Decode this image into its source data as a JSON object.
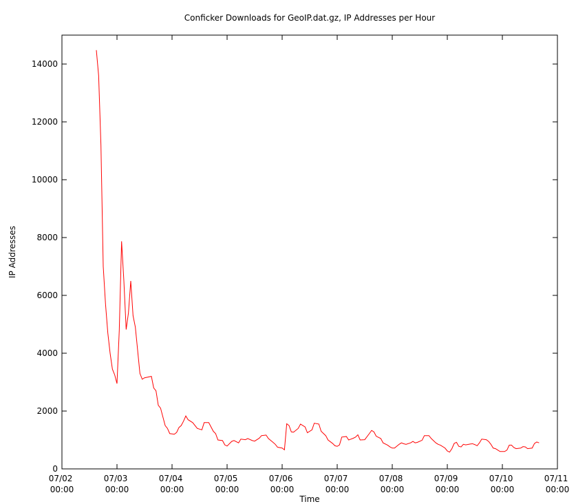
{
  "chart_data": {
    "type": "line",
    "title": "Conficker Downloads for GeoIP.dat.gz, IP Addresses per Hour",
    "x_label": "Time",
    "y_label": "IP Addresses",
    "x": [
      "07/02 15:00",
      "07/02 16:00",
      "07/02 17:00",
      "07/02 18:00",
      "07/02 19:00",
      "07/02 20:00",
      "07/02 21:00",
      "07/02 22:00",
      "07/02 23:00",
      "07/03 00:00",
      "07/03 01:00",
      "07/03 02:00",
      "07/03 03:00",
      "07/03 04:00",
      "07/03 05:00",
      "07/03 06:00",
      "07/03 07:00",
      "07/03 08:00",
      "07/03 09:00",
      "07/03 10:00",
      "07/03 11:00",
      "07/03 12:00",
      "07/03 15:00",
      "07/03 16:00",
      "07/03 17:00",
      "07/03 18:00",
      "07/03 19:00",
      "07/03 21:00",
      "07/03 22:00",
      "07/03 23:00",
      "07/04 01:00",
      "07/04 02:00",
      "07/04 03:00",
      "07/04 04:00",
      "07/04 05:00",
      "07/04 06:00",
      "07/04 07:00",
      "07/04 09:00",
      "07/04 11:00",
      "07/04 13:00",
      "07/04 14:00",
      "07/04 16:00",
      "07/04 18:00",
      "07/04 19:00",
      "07/04 20:00",
      "07/04 22:00",
      "07/04 23:00",
      "07/05 00:00",
      "07/05 02:00",
      "07/05 03:00",
      "07/05 05:00",
      "07/05 06:00",
      "07/05 08:00",
      "07/05 09:00",
      "07/05 11:00",
      "07/05 12:00",
      "07/05 14:00",
      "07/05 15:00",
      "07/05 17:00",
      "07/05 18:00",
      "07/05 20:00",
      "07/05 21:00",
      "07/05 22:00",
      "07/06 00:00",
      "07/06 01:00",
      "07/06 02:00",
      "07/06 03:00",
      "07/06 04:00",
      "07/06 05:00",
      "07/06 07:00",
      "07/06 08:00",
      "07/06 10:00",
      "07/06 11:00",
      "07/06 13:00",
      "07/06 14:00",
      "07/06 16:00",
      "07/06 17:00",
      "07/06 19:00",
      "07/06 20:00",
      "07/06 22:00",
      "07/06 23:00",
      "07/07 00:00",
      "07/07 01:00",
      "07/07 02:00",
      "07/07 04:00",
      "07/07 05:00",
      "07/07 07:00",
      "07/07 08:00",
      "07/07 09:00",
      "07/07 10:00",
      "07/07 12:00",
      "07/07 14:00",
      "07/07 15:00",
      "07/07 16:00",
      "07/07 17:00",
      "07/07 19:00",
      "07/07 20:00",
      "07/07 22:00",
      "07/07 23:00",
      "07/08 00:00",
      "07/08 01:00",
      "07/08 03:00",
      "07/08 04:00",
      "07/08 05:00",
      "07/08 06:00",
      "07/08 08:00",
      "07/08 09:00",
      "07/08 10:00",
      "07/08 11:00",
      "07/08 13:00",
      "07/08 14:00",
      "07/08 16:00",
      "07/08 17:00",
      "07/08 19:00",
      "07/08 20:00",
      "07/08 21:00",
      "07/08 23:00",
      "07/09 00:00",
      "07/09 01:00",
      "07/09 02:00",
      "07/09 03:00",
      "07/09 04:00",
      "07/09 05:00",
      "07/09 06:00",
      "07/09 07:00",
      "07/09 08:00",
      "07/09 10:00",
      "07/09 11:00",
      "07/09 12:00",
      "07/09 13:00",
      "07/09 14:00",
      "07/09 15:00",
      "07/09 17:00",
      "07/09 18:00",
      "07/09 19:00",
      "07/09 20:00",
      "07/09 21:00",
      "07/09 22:00",
      "07/09 23:00",
      "07/10 01:00",
      "07/10 02:00",
      "07/10 03:00",
      "07/10 04:00",
      "07/10 05:00",
      "07/10 06:00",
      "07/10 08:00",
      "07/10 09:00",
      "07/10 10:00",
      "07/10 11:00",
      "07/10 13:00",
      "07/10 14:00",
      "07/10 15:00",
      "07/10 16:00"
    ],
    "series": [
      {
        "color": "#ff0000",
        "values": [
          14480,
          13600,
          11200,
          7000,
          5700,
          4700,
          4000,
          3450,
          3250,
          2950,
          4800,
          7870,
          6500,
          4820,
          5400,
          6500,
          5300,
          4900,
          4100,
          3300,
          3100,
          3150,
          3200,
          2800,
          2700,
          2200,
          2100,
          1500,
          1400,
          1220,
          1200,
          1260,
          1430,
          1500,
          1650,
          1830,
          1700,
          1600,
          1400,
          1350,
          1600,
          1600,
          1300,
          1220,
          1000,
          980,
          830,
          790,
          950,
          980,
          900,
          1030,
          1010,
          1050,
          980,
          960,
          1060,
          1150,
          1170,
          1050,
          920,
          850,
          750,
          720,
          660,
          1560,
          1500,
          1280,
          1270,
          1400,
          1550,
          1450,
          1250,
          1350,
          1580,
          1550,
          1300,
          1150,
          1000,
          880,
          800,
          780,
          830,
          1100,
          1120,
          1000,
          1060,
          1100,
          1180,
          1000,
          1010,
          1220,
          1330,
          1280,
          1130,
          1050,
          900,
          820,
          760,
          720,
          720,
          850,
          900,
          870,
          850,
          900,
          950,
          900,
          920,
          990,
          1150,
          1150,
          1050,
          900,
          850,
          820,
          720,
          620,
          580,
          700,
          880,
          920,
          780,
          760,
          850,
          830,
          860,
          870,
          840,
          800,
          900,
          1030,
          1010,
          950,
          850,
          720,
          700,
          650,
          600,
          600,
          650,
          820,
          820,
          740,
          700,
          720,
          770,
          760,
          700,
          720,
          880,
          930,
          900
        ]
      }
    ],
    "xlim": [
      "07/02 00:00",
      "07/11 00:00"
    ],
    "xticks": [
      "07/02 00:00",
      "07/03 00:00",
      "07/04 00:00",
      "07/05 00:00",
      "07/06 00:00",
      "07/07 00:00",
      "07/08 00:00",
      "07/09 00:00",
      "07/10 00:00",
      "07/11 00:00"
    ],
    "ylim": [
      0,
      15000
    ],
    "yticks": [
      0,
      2000,
      4000,
      6000,
      8000,
      10000,
      12000,
      14000
    ],
    "grid": false
  }
}
